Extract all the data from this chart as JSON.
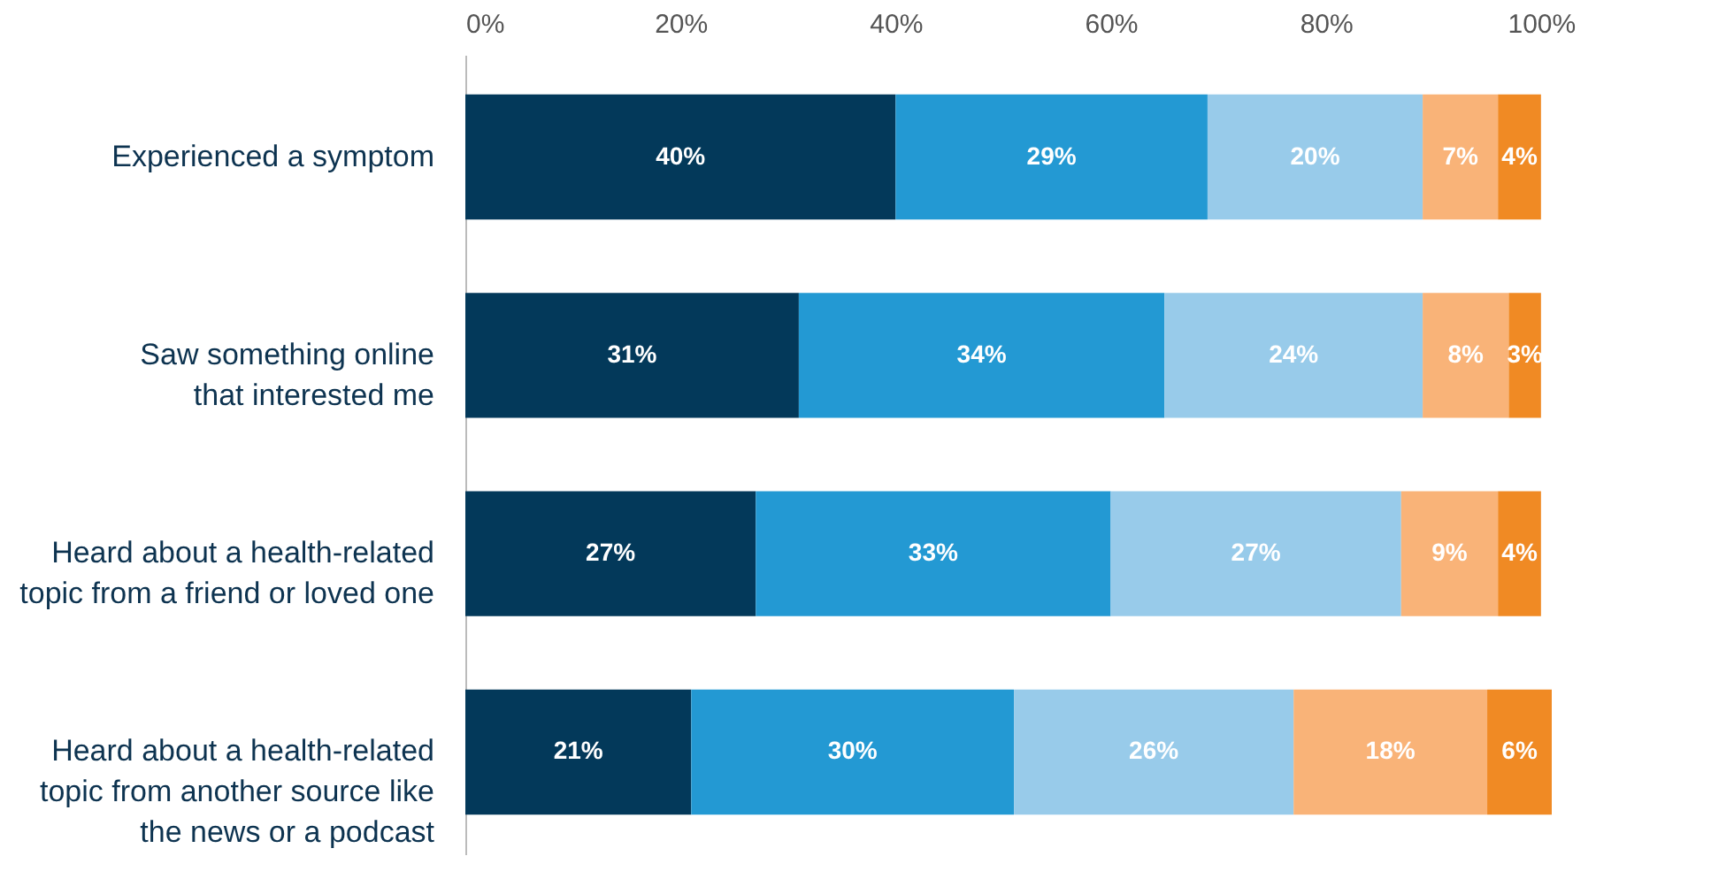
{
  "chart_data": {
    "type": "bar",
    "orientation": "horizontal",
    "stacked": true,
    "categories": [
      "Experienced a symptom",
      "Saw something online\nthat interested me",
      "Heard about a health-related\ntopic from a friend or loved one",
      "Heard about a health-related\ntopic from another source like\nthe news or a podcast"
    ],
    "series": [
      {
        "color": "#03395a",
        "values": [
          40,
          31,
          27,
          21
        ],
        "value_labels": [
          "40%",
          "31%",
          "27%",
          "21%"
        ]
      },
      {
        "color": "#2399d3",
        "values": [
          29,
          34,
          33,
          30
        ],
        "value_labels": [
          "29%",
          "34%",
          "33%",
          "30%"
        ]
      },
      {
        "color": "#98cbea",
        "values": [
          20,
          24,
          27,
          26
        ],
        "value_labels": [
          "20%",
          "24%",
          "27%",
          "26%"
        ]
      },
      {
        "color": "#f9b378",
        "values": [
          7,
          8,
          9,
          18
        ],
        "value_labels": [
          "7%",
          "8%",
          "9%",
          "18%"
        ]
      },
      {
        "color": "#f08a24",
        "values": [
          4,
          3,
          4,
          6
        ],
        "value_labels": [
          "4%",
          "3%",
          "4%",
          "6%"
        ]
      }
    ],
    "xlim": [
      0,
      101
    ],
    "xticks": [
      {
        "value": 0,
        "label": "0%"
      },
      {
        "value": 20,
        "label": "20%"
      },
      {
        "value": 40,
        "label": "40%"
      },
      {
        "value": 60,
        "label": "60%"
      },
      {
        "value": 80,
        "label": "80%"
      },
      {
        "value": 100,
        "label": "100%"
      }
    ],
    "grid": false
  }
}
